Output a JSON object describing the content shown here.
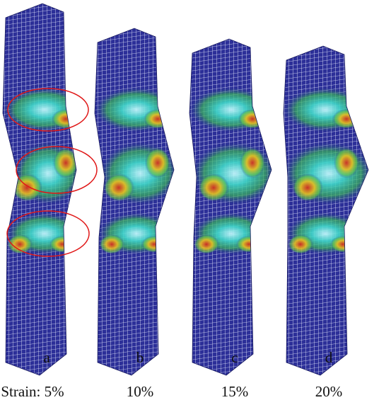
{
  "panels": [
    {
      "label": "a",
      "strain": "Strain: 5%"
    },
    {
      "label": "b",
      "strain": "10%"
    },
    {
      "label": "c",
      "strain": "15%"
    },
    {
      "label": "d",
      "strain": "20%"
    }
  ]
}
